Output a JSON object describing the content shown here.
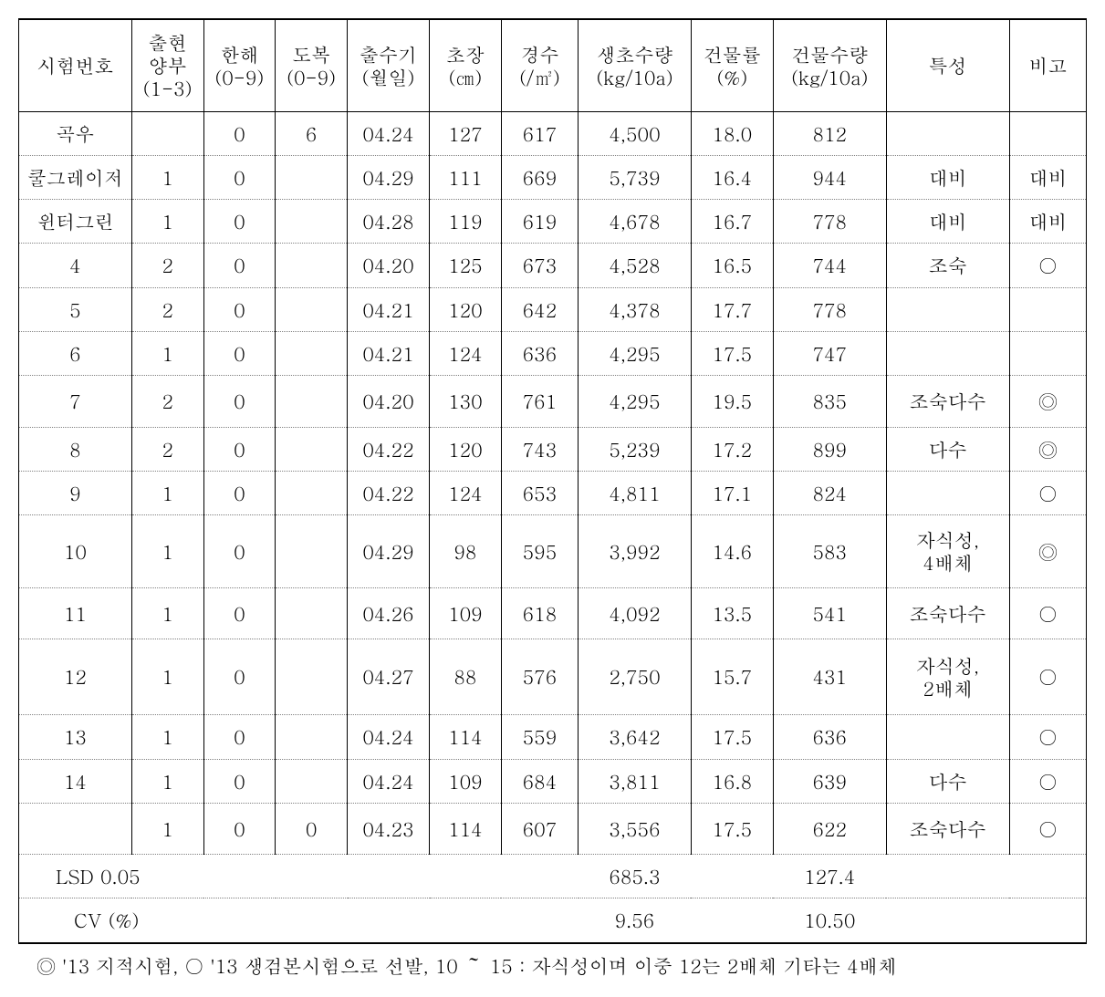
{
  "headers": {
    "test_no": "시험번호",
    "emergence": "출현\n양부\n(1-3)",
    "cold": "한해\n(0-9)",
    "lodging": "도복\n(0-9)",
    "heading": "출수기\n(월일)",
    "height": "초장\n(㎝)",
    "stems": "경수\n(/㎡)",
    "fresh_yield": "생초수량\n(kg/10a)",
    "dry_rate": "건물률\n(%)",
    "dry_yield": "건물수량\n(kg/10a)",
    "trait": "특성",
    "remark": "비고"
  },
  "rows": [
    {
      "test_no": "곡우",
      "emerge": "",
      "cold": "0",
      "lodge": "6",
      "head": "04.24",
      "height": "127",
      "stems": "617",
      "fresh": "4,500",
      "dryr": "18.0",
      "dryy": "812",
      "trait": "",
      "remark": ""
    },
    {
      "test_no": "쿨그레이저",
      "emerge": "1",
      "cold": "0",
      "lodge": "",
      "head": "04.29",
      "height": "111",
      "stems": "669",
      "fresh": "5,739",
      "dryr": "16.4",
      "dryy": "944",
      "trait": "대비",
      "remark": "대비"
    },
    {
      "test_no": "윈터그린",
      "emerge": "1",
      "cold": "0",
      "lodge": "",
      "head": "04.28",
      "height": "119",
      "stems": "619",
      "fresh": "4,678",
      "dryr": "16.7",
      "dryy": "778",
      "trait": "대비",
      "remark": "대비"
    },
    {
      "test_no": "4",
      "emerge": "2",
      "cold": "0",
      "lodge": "",
      "head": "04.20",
      "height": "125",
      "stems": "673",
      "fresh": "4,528",
      "dryr": "16.5",
      "dryy": "744",
      "trait": "조숙",
      "remark": "○"
    },
    {
      "test_no": "5",
      "emerge": "2",
      "cold": "0",
      "lodge": "",
      "head": "04.21",
      "height": "120",
      "stems": "642",
      "fresh": "4,378",
      "dryr": "17.7",
      "dryy": "778",
      "trait": "",
      "remark": ""
    },
    {
      "test_no": "6",
      "emerge": "1",
      "cold": "0",
      "lodge": "",
      "head": "04.21",
      "height": "124",
      "stems": "636",
      "fresh": "4,295",
      "dryr": "17.5",
      "dryy": "747",
      "trait": "",
      "remark": ""
    },
    {
      "test_no": "7",
      "emerge": "2",
      "cold": "0",
      "lodge": "",
      "head": "04.20",
      "height": "130",
      "stems": "761",
      "fresh": "4,295",
      "dryr": "19.5",
      "dryy": "835",
      "trait": "조숙다수",
      "remark": "◎",
      "tall": true
    },
    {
      "test_no": "8",
      "emerge": "2",
      "cold": "0",
      "lodge": "",
      "head": "04.22",
      "height": "120",
      "stems": "743",
      "fresh": "5,239",
      "dryr": "17.2",
      "dryy": "899",
      "trait": "다수",
      "remark": "◎"
    },
    {
      "test_no": "9",
      "emerge": "1",
      "cold": "0",
      "lodge": "",
      "head": "04.22",
      "height": "124",
      "stems": "653",
      "fresh": "4,811",
      "dryr": "17.1",
      "dryy": "824",
      "trait": "",
      "remark": "○"
    },
    {
      "test_no": "10",
      "emerge": "1",
      "cold": "0",
      "lodge": "",
      "head": "04.29",
      "height": "98",
      "stems": "595",
      "fresh": "3,992",
      "dryr": "14.6",
      "dryy": "583",
      "trait": "자식성,\n4배체",
      "remark": "◎",
      "tall": true
    },
    {
      "test_no": "11",
      "emerge": "1",
      "cold": "0",
      "lodge": "",
      "head": "04.26",
      "height": "109",
      "stems": "618",
      "fresh": "4,092",
      "dryr": "13.5",
      "dryy": "541",
      "trait": "조숙다수",
      "remark": "○",
      "tall": true
    },
    {
      "test_no": "12",
      "emerge": "1",
      "cold": "0",
      "lodge": "",
      "head": "04.27",
      "height": "88",
      "stems": "576",
      "fresh": "2,750",
      "dryr": "15.7",
      "dryy": "431",
      "trait": "자식성,\n2배체",
      "remark": "○",
      "xtall": true
    },
    {
      "test_no": "13",
      "emerge": "1",
      "cold": "0",
      "lodge": "",
      "head": "04.24",
      "height": "114",
      "stems": "559",
      "fresh": "3,642",
      "dryr": "17.5",
      "dryy": "636",
      "trait": "",
      "remark": "○"
    },
    {
      "test_no": "14",
      "emerge": "1",
      "cold": "0",
      "lodge": "",
      "head": "04.24",
      "height": "109",
      "stems": "684",
      "fresh": "3,811",
      "dryr": "16.8",
      "dryy": "639",
      "trait": "다수",
      "remark": "○"
    },
    {
      "test_no": "",
      "emerge": "1",
      "cold": "0",
      "lodge": "0",
      "head": "04.23",
      "height": "114",
      "stems": "607",
      "fresh": "3,556",
      "dryr": "17.5",
      "dryy": "622",
      "trait": "조숙다수",
      "remark": "○",
      "tall": true
    }
  ],
  "stats": {
    "lsd_label": "LSD 0.05",
    "lsd_fresh": "685.3",
    "lsd_dry": "127.4",
    "cv_label": "CV (%)",
    "cv_fresh": "9.56",
    "cv_dry": "10.50"
  },
  "footnote": "◎ '13 지적시험, ○ '13 생검본시험으로 선발, 10 ～ 15 : 자식성이며 이중 12는 2배체 기타는 4배체"
}
